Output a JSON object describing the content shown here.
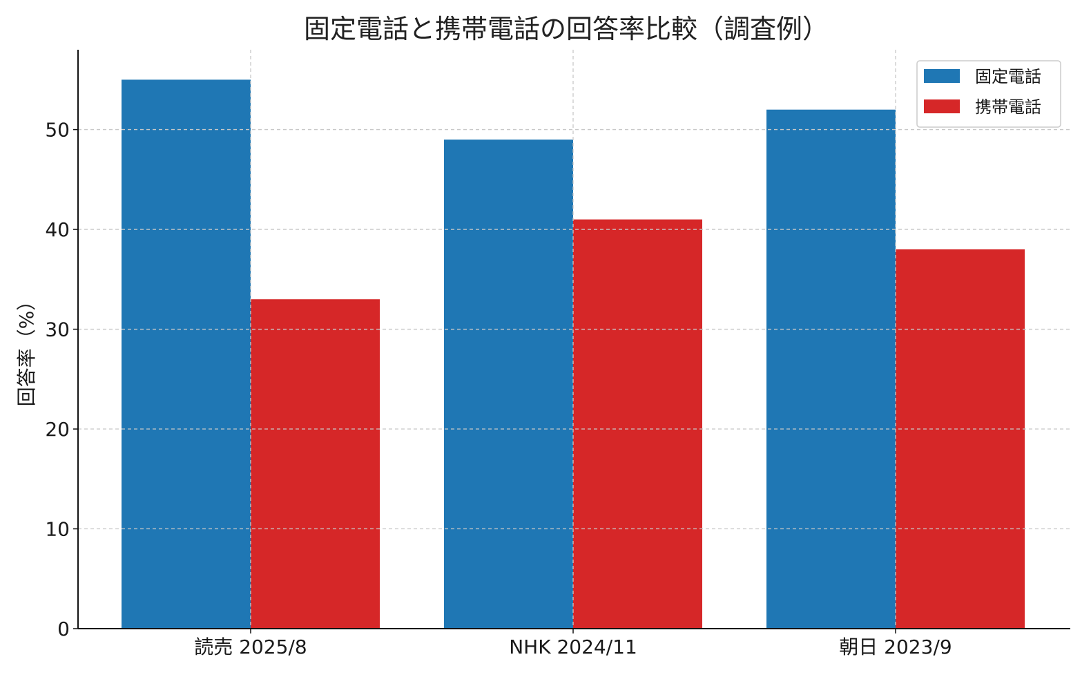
{
  "chart_data": {
    "type": "bar",
    "title": "固定電話と携帯電話の回答率比較（調査例）",
    "xlabel": "",
    "ylabel": "回答率（%）",
    "categories": [
      "読売 2025/8",
      "NHK 2024/11",
      "朝日 2023/9"
    ],
    "series": [
      {
        "name": "固定電話",
        "values": [
          55,
          49,
          52
        ],
        "color": "#1f77b4"
      },
      {
        "name": "携帯電話",
        "values": [
          33,
          41,
          38
        ],
        "color": "#d62728"
      }
    ],
    "ylim": [
      0,
      58
    ],
    "yticks": [
      0,
      10,
      20,
      30,
      40,
      50
    ],
    "grid": true,
    "legend_position": "top-right"
  }
}
